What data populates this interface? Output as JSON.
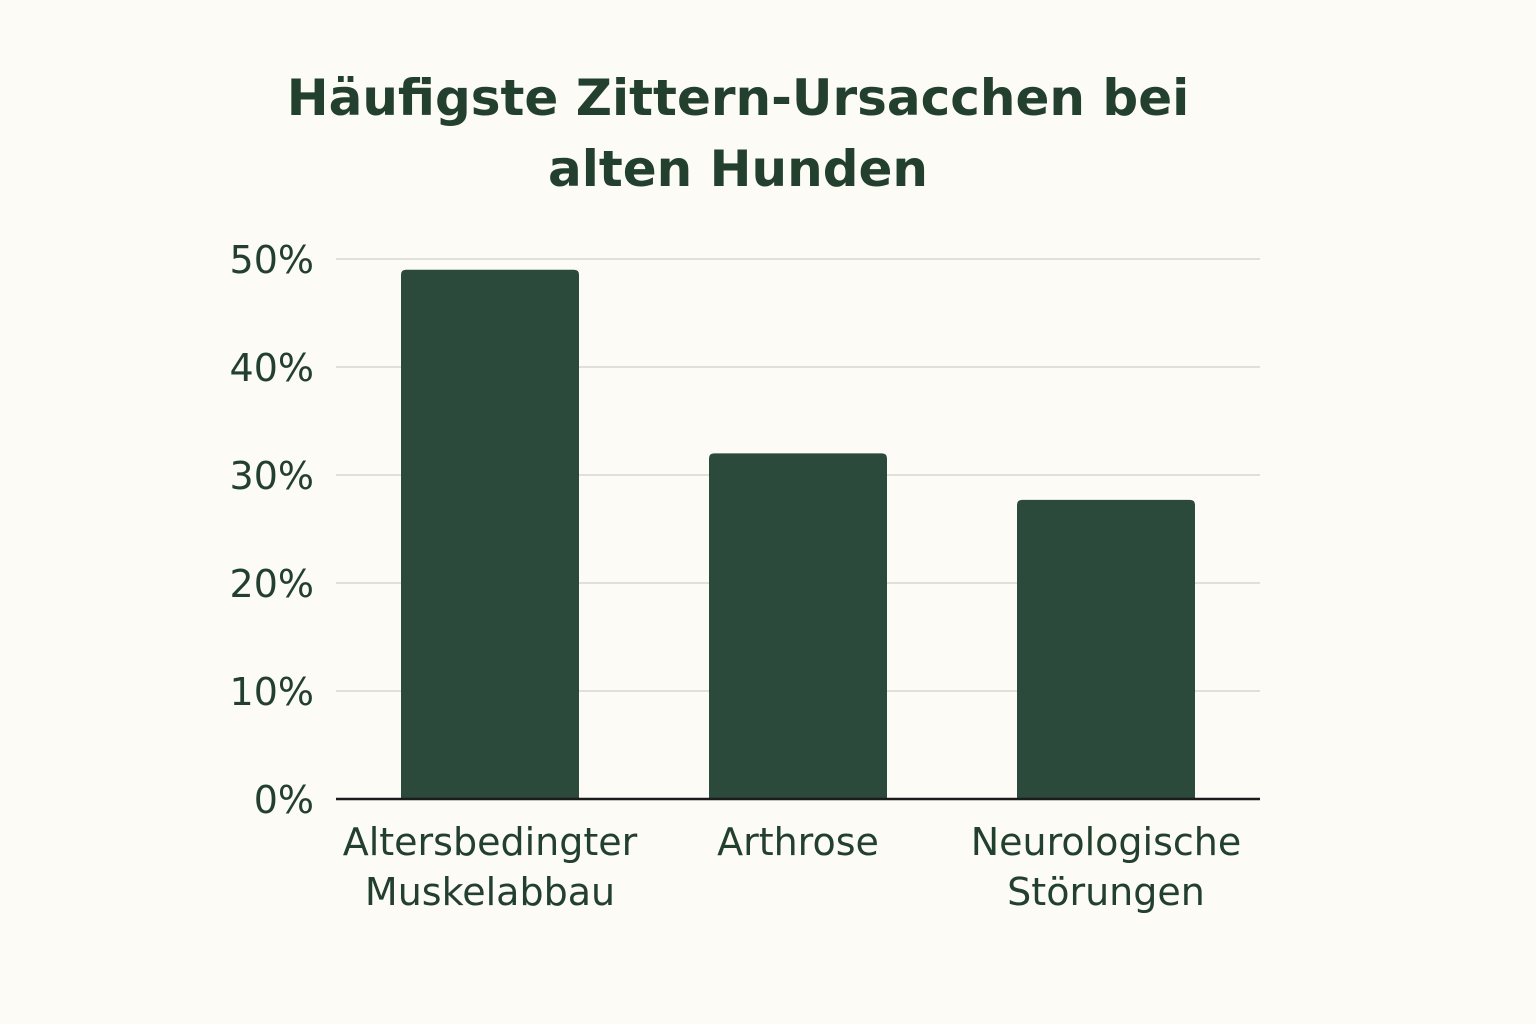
{
  "chart_data": {
    "type": "bar",
    "title_lines": [
      "Häufigste Zittern-Ursacchen bei",
      "alten Hunden"
    ],
    "categories": [
      [
        "Altersbedingter",
        "Muskelabbau"
      ],
      [
        "Arthrose"
      ],
      [
        "Neurologische",
        "Störungen"
      ]
    ],
    "values": [
      49,
      32,
      27.7
    ],
    "ylim": [
      0,
      50
    ],
    "yticks": [
      0,
      10,
      20,
      30,
      40,
      50
    ],
    "ytick_labels": [
      "0%",
      "10%",
      "20%",
      "30%",
      "40%",
      "50%"
    ],
    "grid": true,
    "xlabel": "",
    "ylabel": "",
    "colors": {
      "bar": "#2c4a3c",
      "text": "#23402f",
      "background": "#fcfbf5"
    }
  }
}
